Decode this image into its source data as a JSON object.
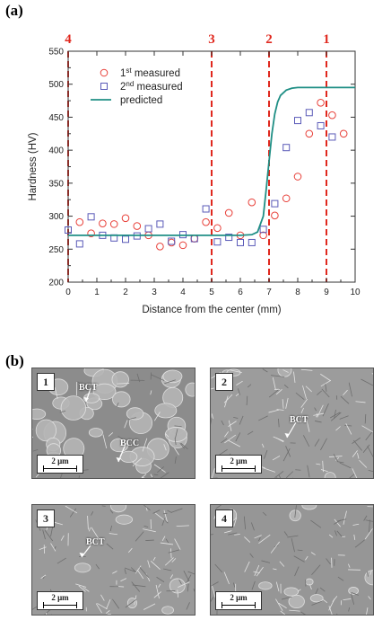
{
  "panel_a": {
    "label": "(a)"
  },
  "panel_b": {
    "label": "(b)"
  },
  "chart_data": {
    "type": "scatter",
    "xlabel": "Distance from the center (mm)",
    "ylabel": "Hardness (HV)",
    "xlim": [
      0,
      10
    ],
    "ylim": [
      200,
      550
    ],
    "xticks": [
      "0",
      "1",
      "2",
      "3",
      "4",
      "5",
      "6",
      "7",
      "8",
      "9",
      "10"
    ],
    "yticks": [
      "200",
      "250",
      "300",
      "350",
      "400",
      "450",
      "500",
      "550"
    ],
    "legend_position": "top-left",
    "grid": false,
    "series": [
      {
        "name": "1st measured",
        "marker": "circle",
        "color": "#e8413a",
        "x": [
          0.4,
          0.8,
          1.2,
          1.6,
          2.0,
          2.4,
          2.8,
          3.2,
          3.6,
          4.0,
          4.4,
          4.8,
          5.2,
          5.6,
          6.0,
          6.4,
          6.8,
          7.2,
          7.6,
          8.0,
          8.4,
          8.8,
          9.2,
          9.6
        ],
        "y": [
          291,
          274,
          289,
          288,
          297,
          285,
          271,
          254,
          260,
          256,
          266,
          291,
          282,
          305,
          271,
          321,
          271,
          301,
          327,
          360,
          425,
          472,
          453,
          425
        ]
      },
      {
        "name": "2nd measured",
        "marker": "square",
        "color": "#5a5ab8",
        "x": [
          0.0,
          0.4,
          0.8,
          1.2,
          1.6,
          2.0,
          2.4,
          2.8,
          3.2,
          3.6,
          4.0,
          4.4,
          4.8,
          5.2,
          5.6,
          6.0,
          6.4,
          6.8,
          7.2,
          7.6,
          8.0,
          8.4,
          8.8,
          9.2
        ],
        "y": [
          279,
          258,
          299,
          271,
          267,
          265,
          270,
          281,
          288,
          262,
          272,
          266,
          311,
          261,
          268,
          260,
          260,
          280,
          319,
          404,
          445,
          457,
          437,
          420
        ]
      },
      {
        "name": "predicted",
        "marker": "line",
        "color": "#1f8f85",
        "x": [
          0,
          6.0,
          6.4,
          6.6,
          6.8,
          6.9,
          7.0,
          7.1,
          7.2,
          7.3,
          7.4,
          7.6,
          7.8,
          8.0,
          8.5,
          10
        ],
        "y": [
          271,
          271,
          272,
          276,
          300,
          340,
          383,
          425,
          455,
          473,
          483,
          491,
          494,
          495,
          495,
          495
        ]
      }
    ],
    "vlines": [
      {
        "x": 0,
        "label": "4"
      },
      {
        "x": 5,
        "label": "3"
      },
      {
        "x": 7,
        "label": "2"
      },
      {
        "x": 9,
        "label": "1"
      }
    ],
    "vline_color": "#e0281e"
  },
  "micrographs": [
    {
      "number": "1",
      "scale": "2 μm",
      "annotations": [
        {
          "text": "BCT"
        },
        {
          "text": "BCC"
        }
      ]
    },
    {
      "number": "2",
      "scale": "2 μm",
      "annotations": [
        {
          "text": "BCT"
        }
      ]
    },
    {
      "number": "3",
      "scale": "2 μm",
      "annotations": [
        {
          "text": "BCT"
        }
      ]
    },
    {
      "number": "4",
      "scale": "2 μm",
      "annotations": []
    }
  ]
}
